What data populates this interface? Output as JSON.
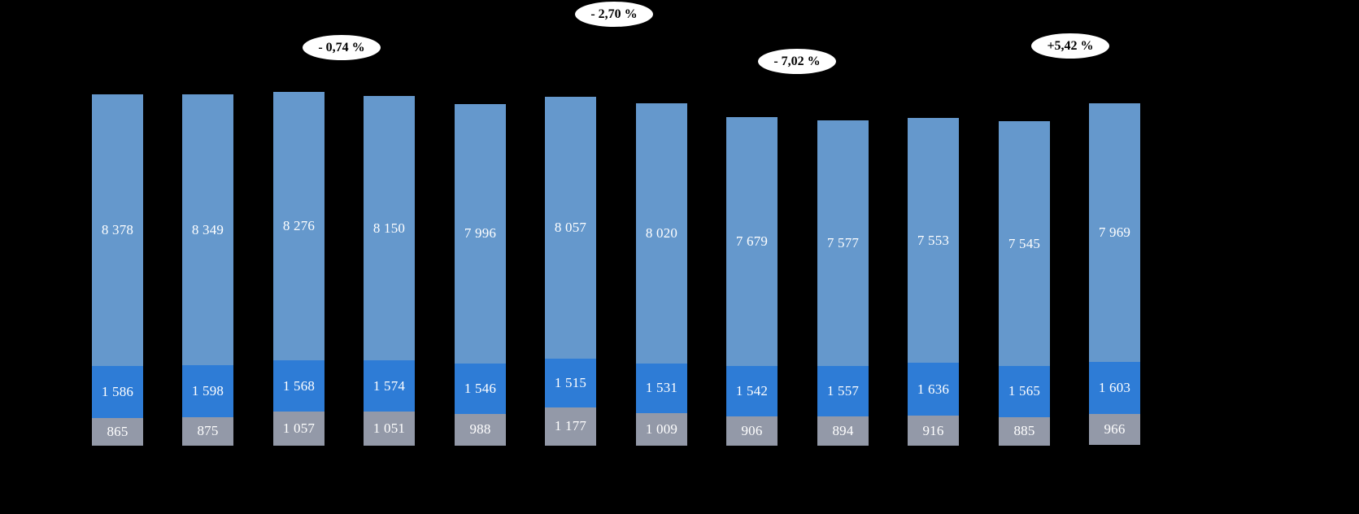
{
  "chart_data": {
    "type": "stacked-bar",
    "title": "",
    "background": "#000000",
    "axes_visible": false,
    "grid": false,
    "legend_position": "none",
    "bar_count": 12,
    "number_format": "space-thousands",
    "label_color": "#ffffff",
    "series": [
      {
        "name": "segment-bottom-gray",
        "color": "#9399a8",
        "values": [
          865,
          875,
          1057,
          1051,
          988,
          1177,
          1009,
          906,
          894,
          916,
          885,
          966
        ]
      },
      {
        "name": "segment-middle-blue",
        "color": "#2e7cd6",
        "values": [
          1586,
          1598,
          1568,
          1574,
          1546,
          1515,
          1531,
          1542,
          1557,
          1636,
          1565,
          1603
        ]
      },
      {
        "name": "segment-top-lightblue",
        "color": "#6598cc",
        "values": [
          8378,
          8349,
          8276,
          8150,
          7996,
          8057,
          8020,
          7679,
          7577,
          7553,
          7545,
          7969
        ]
      }
    ],
    "totals": [
      10829,
      10822,
      10901,
      10775,
      10530,
      10749,
      10560,
      10127,
      10028,
      10105,
      9995,
      10538
    ],
    "annotations": [
      {
        "text": "- 0,74 %",
        "x": 420,
        "y": 58
      },
      {
        "text": "- 2,70 %",
        "x": 755,
        "y": 17
      },
      {
        "text": "- 7,02 %",
        "x": 980,
        "y": 75
      },
      {
        "text": "+5,42 %",
        "x": 1316,
        "y": 56
      }
    ]
  }
}
